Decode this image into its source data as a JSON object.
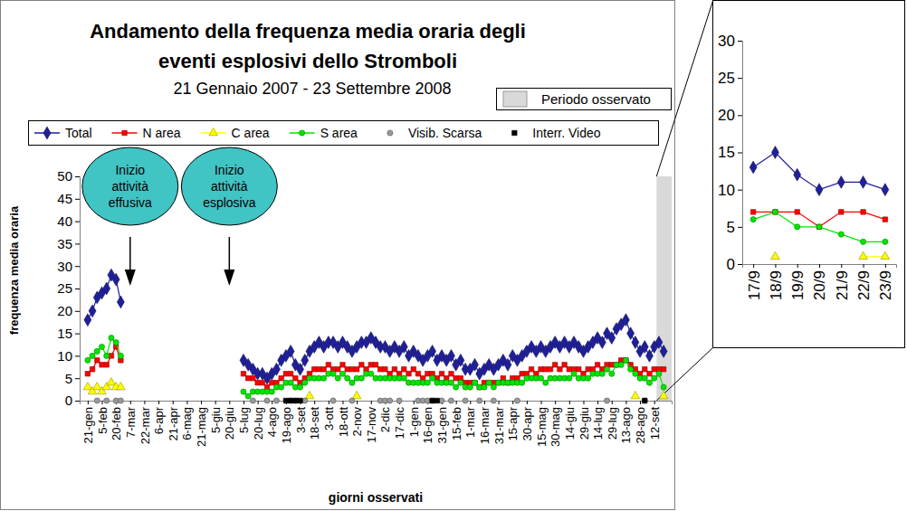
{
  "chart_data": [
    {
      "type": "line",
      "title": [
        "Andamento della frequenza media oraria degli",
        "eventi esplosivi dello Stromboli"
      ],
      "subtitle": "21 Gennaio 2007 - 23 Settembre 2008",
      "x_label": "giorni osservati",
      "y_label": "frequenza media oraria",
      "observed_period": "Periodo osservato",
      "annotations": [
        {
          "text": "Inizio attività effusiva",
          "x": "7-mar"
        },
        {
          "text": "Inizio attività esplosiva",
          "x": "20-giu"
        }
      ],
      "legend": "top",
      "grid": false,
      "ylim": [
        0,
        50
      ],
      "yticks": [
        0,
        5,
        10,
        15,
        20,
        25,
        30,
        35,
        40,
        45,
        50
      ],
      "categories": [
        "21-gen",
        null,
        null,
        "5-feb",
        null,
        null,
        "20-feb",
        null,
        null,
        "7-mar",
        null,
        null,
        "22-mar",
        null,
        null,
        "6-apr",
        null,
        null,
        "21-apr",
        null,
        null,
        "6-mag",
        null,
        null,
        "21-mag",
        null,
        null,
        "5-giu",
        null,
        null,
        "20-giu",
        null,
        null,
        "5-lug",
        null,
        null,
        "20-lug",
        null,
        null,
        "4-ago",
        null,
        null,
        "19-ago",
        null,
        null,
        "3-set",
        null,
        null,
        "18-set",
        null,
        null,
        "3-ott",
        null,
        null,
        "18-ott",
        null,
        null,
        "2-nov",
        null,
        null,
        "17-nov",
        null,
        null,
        "2-dic",
        null,
        null,
        "17-dic",
        null,
        null,
        "1-gen",
        null,
        null,
        "16-gen",
        null,
        null,
        "31-gen",
        null,
        null,
        "15-feb",
        null,
        null,
        "1-mar",
        null,
        null,
        "16-mar",
        null,
        null,
        "31-mar",
        null,
        null,
        "15-apr",
        null,
        null,
        "30-apr",
        null,
        null,
        "15-mag",
        null,
        null,
        "30-mag",
        null,
        null,
        "14-giu",
        null,
        null,
        "29-giu",
        null,
        null,
        "14-lug",
        null,
        null,
        "29-lug",
        null,
        null,
        "13-ago",
        null,
        null,
        "28-ago",
        null,
        null,
        "12-set",
        null,
        null
      ],
      "series": [
        {
          "name": "Total",
          "color": "#1f1f99",
          "marker": "diamond",
          "line_style": "solid",
          "values": [
            18,
            20,
            23,
            24,
            25,
            28,
            27,
            22,
            null,
            null,
            null,
            null,
            null,
            null,
            null,
            null,
            null,
            null,
            null,
            null,
            null,
            null,
            null,
            null,
            null,
            null,
            null,
            null,
            null,
            null,
            null,
            null,
            null,
            9,
            8,
            7,
            6,
            6,
            5,
            6,
            7,
            9,
            10,
            11,
            8,
            7,
            9,
            11,
            12,
            13,
            12,
            13,
            13,
            12,
            13,
            12,
            11,
            12,
            13,
            13,
            14,
            13,
            12,
            12,
            11,
            12,
            11,
            12,
            10,
            11,
            10,
            9,
            10,
            11,
            9,
            10,
            9,
            10,
            8,
            9,
            7,
            7,
            8,
            6,
            7,
            8,
            7,
            8,
            9,
            8,
            10,
            9,
            10,
            11,
            12,
            11,
            12,
            11,
            12,
            13,
            12,
            13,
            12,
            13,
            12,
            11,
            12,
            13,
            14,
            13,
            15,
            14,
            16,
            17,
            18,
            15,
            13,
            11,
            12,
            10,
            12,
            13,
            11
          ]
        },
        {
          "name": "N area",
          "color": "#ff0000",
          "marker": "square",
          "line_style": "solid",
          "values": [
            6,
            7,
            9,
            8,
            8,
            10,
            12,
            9,
            null,
            null,
            null,
            null,
            null,
            null,
            null,
            null,
            null,
            null,
            null,
            null,
            null,
            null,
            null,
            null,
            null,
            null,
            null,
            null,
            null,
            null,
            null,
            null,
            null,
            6,
            5,
            5,
            4,
            4,
            3,
            4,
            4,
            5,
            6,
            6,
            5,
            4,
            5,
            6,
            7,
            7,
            7,
            8,
            7,
            7,
            8,
            7,
            7,
            7,
            8,
            7,
            8,
            8,
            7,
            7,
            6,
            7,
            6,
            7,
            6,
            7,
            6,
            5,
            6,
            6,
            5,
            6,
            5,
            6,
            5,
            5,
            4,
            4,
            4,
            3,
            4,
            4,
            4,
            4,
            5,
            4,
            5,
            5,
            6,
            6,
            7,
            6,
            7,
            7,
            7,
            8,
            7,
            8,
            7,
            7,
            7,
            6,
            7,
            7,
            8,
            7,
            8,
            8,
            8,
            9,
            9,
            8,
            7,
            6,
            7,
            6,
            7,
            7,
            7
          ]
        },
        {
          "name": "C area",
          "color": "#ffff00",
          "marker": "triangle",
          "line_style": "solid",
          "values": [
            3,
            2,
            3,
            2,
            3,
            4,
            3,
            3,
            null,
            null,
            null,
            null,
            null,
            null,
            null,
            null,
            null,
            null,
            null,
            null,
            null,
            null,
            null,
            null,
            null,
            null,
            null,
            null,
            null,
            null,
            null,
            null,
            null,
            null,
            null,
            null,
            null,
            null,
            null,
            null,
            null,
            null,
            null,
            null,
            null,
            null,
            null,
            1,
            null,
            null,
            null,
            null,
            null,
            null,
            null,
            null,
            null,
            1,
            null,
            null,
            null,
            null,
            null,
            null,
            null,
            null,
            null,
            null,
            null,
            null,
            null,
            null,
            null,
            null,
            null,
            null,
            null,
            null,
            null,
            null,
            null,
            null,
            null,
            null,
            null,
            null,
            null,
            null,
            null,
            null,
            null,
            null,
            null,
            null,
            null,
            null,
            null,
            null,
            null,
            null,
            null,
            null,
            null,
            null,
            null,
            null,
            null,
            null,
            null,
            null,
            null,
            null,
            null,
            null,
            null,
            null,
            1,
            null,
            null,
            null,
            null,
            null,
            1
          ]
        },
        {
          "name": "S area",
          "color": "#00e600",
          "marker": "circle",
          "line_style": "solid",
          "values": [
            9,
            10,
            11,
            12,
            10,
            14,
            13,
            10,
            null,
            null,
            null,
            null,
            null,
            null,
            null,
            null,
            null,
            null,
            null,
            null,
            null,
            null,
            null,
            null,
            null,
            null,
            null,
            null,
            null,
            null,
            null,
            null,
            null,
            2,
            1,
            2,
            2,
            2,
            2,
            2,
            3,
            3,
            4,
            4,
            3,
            3,
            4,
            5,
            5,
            5,
            5,
            6,
            6,
            5,
            6,
            5,
            4,
            5,
            5,
            6,
            6,
            5,
            5,
            5,
            5,
            5,
            5,
            5,
            4,
            4,
            4,
            4,
            4,
            5,
            4,
            4,
            4,
            4,
            3,
            4,
            3,
            3,
            4,
            3,
            3,
            4,
            3,
            4,
            4,
            4,
            4,
            4,
            4,
            5,
            5,
            5,
            5,
            4,
            5,
            5,
            5,
            5,
            5,
            6,
            5,
            5,
            5,
            6,
            6,
            6,
            7,
            6,
            8,
            8,
            9,
            7,
            6,
            5,
            5,
            4,
            5,
            6,
            3
          ]
        },
        {
          "name": "Visib. Scarsa",
          "color": "#999999",
          "marker": "circle",
          "line_style": "none",
          "values": [
            null,
            null,
            0,
            null,
            0,
            null,
            0,
            0,
            null,
            null,
            null,
            null,
            null,
            null,
            null,
            null,
            null,
            null,
            null,
            null,
            null,
            null,
            null,
            null,
            null,
            null,
            null,
            null,
            null,
            null,
            null,
            null,
            null,
            null,
            null,
            0,
            null,
            null,
            0,
            null,
            0,
            null,
            null,
            0,
            0,
            null,
            0,
            null,
            null,
            null,
            null,
            null,
            0,
            null,
            null,
            null,
            0,
            null,
            null,
            null,
            null,
            null,
            0,
            0,
            0,
            null,
            0,
            null,
            null,
            null,
            0,
            0,
            0,
            0,
            null,
            0,
            null,
            0,
            null,
            null,
            0,
            null,
            null,
            0,
            null,
            null,
            0,
            null,
            null,
            null,
            null,
            0,
            null,
            null,
            null,
            null,
            null,
            null,
            null,
            null,
            null,
            null,
            null,
            null,
            null,
            null,
            null,
            null,
            null,
            null,
            0,
            null,
            null,
            null,
            null,
            null,
            null,
            null,
            0,
            null,
            null,
            null,
            null
          ]
        },
        {
          "name": "Interr. Video",
          "color": "#000000",
          "marker": "square",
          "line_style": "none",
          "values": [
            null,
            null,
            null,
            null,
            null,
            null,
            null,
            null,
            null,
            null,
            null,
            null,
            null,
            null,
            null,
            null,
            null,
            null,
            null,
            null,
            null,
            null,
            null,
            null,
            null,
            null,
            null,
            null,
            null,
            null,
            null,
            null,
            null,
            null,
            null,
            null,
            null,
            null,
            null,
            null,
            null,
            null,
            0,
            0,
            0,
            0,
            null,
            null,
            null,
            null,
            null,
            null,
            null,
            null,
            null,
            null,
            null,
            null,
            null,
            null,
            null,
            null,
            null,
            null,
            null,
            null,
            null,
            null,
            null,
            null,
            null,
            null,
            null,
            0,
            0,
            null,
            null,
            null,
            null,
            null,
            null,
            null,
            null,
            null,
            null,
            null,
            null,
            null,
            null,
            null,
            null,
            null,
            null,
            null,
            null,
            null,
            null,
            null,
            null,
            null,
            null,
            null,
            null,
            null,
            null,
            null,
            null,
            null,
            null,
            null,
            null,
            null,
            null,
            null,
            null,
            null,
            null,
            null,
            0,
            null,
            null,
            null,
            null
          ]
        }
      ]
    },
    {
      "type": "line",
      "grid": false,
      "ylim": [
        0,
        30
      ],
      "yticks": [
        0,
        5,
        10,
        15,
        20,
        25,
        30
      ],
      "categories": [
        "17/9",
        "18/9",
        "19/9",
        "20/9",
        "21/9",
        "22/9",
        "23/9"
      ],
      "series": [
        {
          "color": "#1f1f99",
          "marker": "diamond",
          "line_style": "solid",
          "values": [
            13,
            15,
            12,
            10,
            11,
            11,
            10
          ]
        },
        {
          "color": "#ff0000",
          "marker": "square",
          "line_style": "solid",
          "values": [
            7,
            7,
            7,
            5,
            7,
            7,
            6
          ]
        },
        {
          "color": "#ffff00",
          "marker": "triangle",
          "line_style": "solid",
          "values": [
            null,
            1,
            null,
            null,
            null,
            1,
            1
          ]
        },
        {
          "color": "#00e600",
          "marker": "circle",
          "line_style": "solid",
          "values": [
            6,
            7,
            5,
            5,
            4,
            3,
            3
          ]
        }
      ]
    }
  ]
}
